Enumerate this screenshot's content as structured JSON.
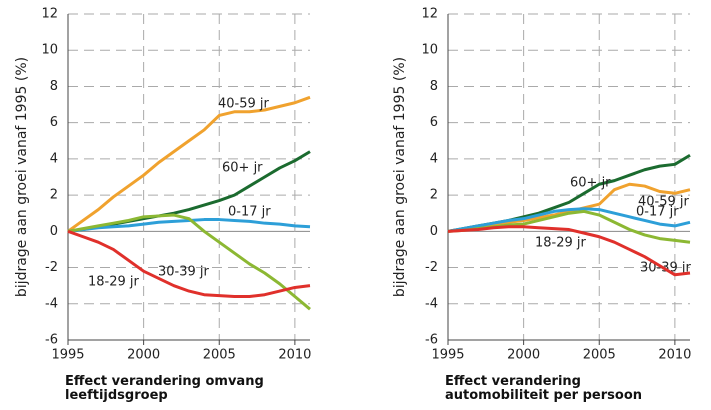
{
  "chart_data": [
    {
      "type": "line",
      "title": "Effect verandering omvang leeftijdsgroep",
      "ylabel": "bijdrage aan groei vanaf 1995 (%)",
      "x": [
        1995,
        1996,
        1997,
        1998,
        1999,
        2000,
        2001,
        2002,
        2003,
        2004,
        2005,
        2006,
        2007,
        2008,
        2009,
        2010,
        2011
      ],
      "xlim": [
        1995,
        2011
      ],
      "ylim": [
        -6,
        12
      ],
      "xticks": [
        1995,
        2000,
        2005,
        2010
      ],
      "yticks": [
        -6,
        -4,
        -2,
        0,
        2,
        4,
        6,
        8,
        10,
        12
      ],
      "grid": true,
      "series": [
        {
          "name": "40-59 jr",
          "color": "#f0a22e",
          "values": [
            0,
            0.6,
            1.2,
            1.9,
            2.5,
            3.1,
            3.8,
            4.4,
            5.0,
            5.6,
            6.4,
            6.6,
            6.6,
            6.7,
            6.9,
            7.1,
            7.4
          ]
        },
        {
          "name": "60+ jr",
          "color": "#1b6b2f",
          "values": [
            0,
            0.1,
            0.25,
            0.4,
            0.55,
            0.7,
            0.85,
            1.0,
            1.2,
            1.45,
            1.7,
            2.0,
            2.5,
            3.0,
            3.5,
            3.9,
            4.4
          ]
        },
        {
          "name": "0-17 jr",
          "color": "#2d9fd8",
          "values": [
            0,
            0.1,
            0.2,
            0.25,
            0.3,
            0.4,
            0.5,
            0.55,
            0.6,
            0.65,
            0.65,
            0.6,
            0.55,
            0.45,
            0.4,
            0.3,
            0.25
          ]
        },
        {
          "name": "30-39 jr",
          "color": "#8cb833",
          "values": [
            0,
            0.15,
            0.3,
            0.45,
            0.6,
            0.8,
            0.85,
            0.9,
            0.7,
            0,
            -0.6,
            -1.2,
            -1.8,
            -2.3,
            -2.9,
            -3.6,
            -4.3
          ]
        },
        {
          "name": "18-29 jr",
          "color": "#e0302b",
          "values": [
            0,
            -0.3,
            -0.6,
            -1.0,
            -1.6,
            -2.2,
            -2.6,
            -3.0,
            -3.3,
            -3.5,
            -3.55,
            -3.6,
            -3.6,
            -3.5,
            -3.3,
            -3.1,
            -3.0
          ]
        }
      ]
    },
    {
      "type": "line",
      "title": "Effect verandering automobiliteit per persoon",
      "ylabel": "bijdrage aan groei vanaf 1995 (%)",
      "x": [
        1995,
        1996,
        1997,
        1998,
        1999,
        2000,
        2001,
        2002,
        2003,
        2004,
        2005,
        2006,
        2007,
        2008,
        2009,
        2010,
        2011
      ],
      "xlim": [
        1995,
        2011
      ],
      "ylim": [
        -6,
        12
      ],
      "xticks": [
        1995,
        2000,
        2005,
        2010
      ],
      "yticks": [
        -6,
        -4,
        -2,
        0,
        2,
        4,
        6,
        8,
        10,
        12
      ],
      "grid": true,
      "series": [
        {
          "name": "60+ jr",
          "color": "#1b6b2f",
          "values": [
            0,
            0.15,
            0.3,
            0.45,
            0.6,
            0.8,
            1.0,
            1.3,
            1.6,
            2.1,
            2.6,
            2.8,
            3.1,
            3.4,
            3.6,
            3.7,
            4.2
          ]
        },
        {
          "name": "40-59 jr",
          "color": "#f0a22e",
          "values": [
            0,
            0.1,
            0.25,
            0.4,
            0.5,
            0.6,
            0.75,
            0.9,
            1.1,
            1.3,
            1.5,
            2.3,
            2.6,
            2.5,
            2.2,
            2.1,
            2.3
          ]
        },
        {
          "name": "0-17 jr",
          "color": "#2d9fd8",
          "values": [
            0,
            0.15,
            0.3,
            0.45,
            0.6,
            0.7,
            0.9,
            1.1,
            1.2,
            1.25,
            1.2,
            1.0,
            0.8,
            0.6,
            0.4,
            0.3,
            0.5
          ]
        },
        {
          "name": "30-39 jr",
          "color": "#8cb833",
          "values": [
            0,
            0.05,
            0.15,
            0.25,
            0.35,
            0.4,
            0.6,
            0.8,
            1.0,
            1.1,
            0.9,
            0.5,
            0.1,
            -0.2,
            -0.4,
            -0.5,
            -0.6
          ]
        },
        {
          "name": "18-29 jr",
          "color": "#e0302b",
          "values": [
            0,
            0.05,
            0.1,
            0.2,
            0.25,
            0.25,
            0.2,
            0.15,
            0.1,
            -0.1,
            -0.3,
            -0.6,
            -1.0,
            -1.4,
            -1.9,
            -2.4,
            -2.3
          ]
        }
      ]
    }
  ]
}
